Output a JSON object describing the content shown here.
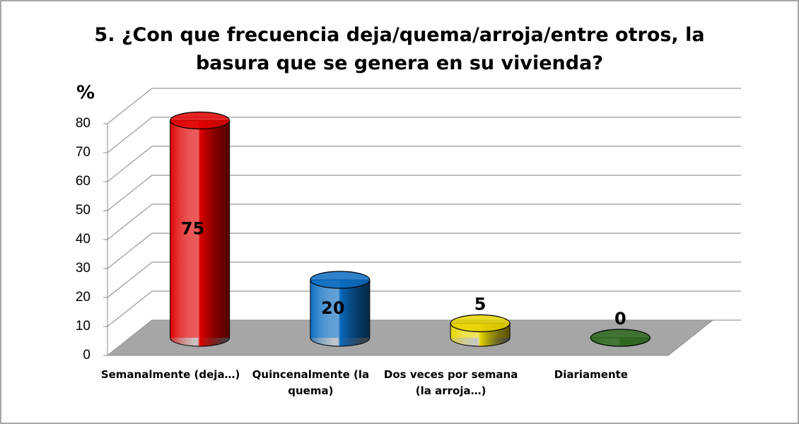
{
  "chart_data": {
    "type": "bar3d",
    "title": "5. ¿Con que frecuencia deja/quema/arroja/entre otros, la basura que se genera en su vivienda?",
    "y_label": "%",
    "categories": [
      "Semanalmente (deja…)",
      "Quincenalmente (la quema)",
      "Dos veces por semana (la arroja…)",
      "Diariamente"
    ],
    "values": [
      75,
      20,
      5,
      0
    ],
    "colors": [
      "#e00000",
      "#0a6cc0",
      "#e6d400",
      "#2f6a1f"
    ],
    "ylim": [
      0,
      80
    ],
    "yticks": [
      0,
      10,
      20,
      30,
      40,
      50,
      60,
      70,
      80
    ],
    "grid": true
  }
}
